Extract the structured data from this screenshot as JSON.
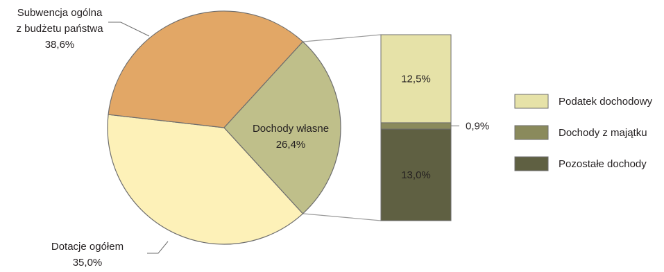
{
  "chart_data": {
    "type": "pie",
    "pie": {
      "slices": [
        {
          "id": "subwencja",
          "label_lines": [
            "Subwencja ogólna",
            "z budżetu państwa"
          ],
          "value": 38.6,
          "value_label": "38,6%",
          "color": "#fdf1b8"
        },
        {
          "id": "dotacje",
          "label_lines": [
            "Dotacje ogółem"
          ],
          "value": 35.0,
          "value_label": "35,0%",
          "color": "#e2a766"
        },
        {
          "id": "wlasne",
          "label_lines": [
            "Dochody własne"
          ],
          "value": 26.4,
          "value_label": "26,4%",
          "color": "#bfbf8a"
        }
      ],
      "exploded_slice": "wlasne"
    },
    "breakdown": {
      "stack": [
        {
          "id": "pozostale",
          "name": "Pozostałe dochody",
          "value": 13.0,
          "value_label": "13,0%",
          "color": "#5f6042"
        },
        {
          "id": "majatek",
          "name": "Dochody z majątku",
          "value": 0.9,
          "value_label": "0,9%",
          "color": "#8a8a5c"
        },
        {
          "id": "podatek",
          "name": "Podatek dochodowy",
          "value": 12.5,
          "value_label": "12,5%",
          "color": "#e6e2a8"
        }
      ]
    },
    "legend": {
      "placement": "right",
      "entries": [
        {
          "name": "Podatek dochodowy",
          "color": "#e6e2a8"
        },
        {
          "name": "Dochody z majątku",
          "color": "#8a8a5c"
        },
        {
          "name": "Pozostałe dochody",
          "color": "#5f6042"
        }
      ]
    }
  }
}
